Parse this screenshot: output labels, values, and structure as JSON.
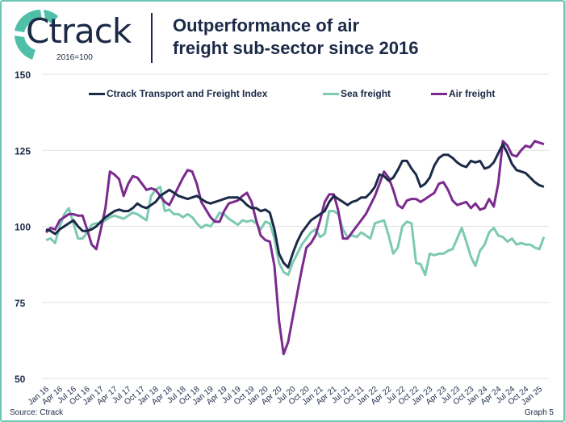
{
  "header": {
    "logo_text": "Ctrack",
    "base_note": "2016=100",
    "title_line1": "Outperformance of air",
    "title_line2": "freight sub-sector since 2016"
  },
  "footer": {
    "source": "Source: Ctrack",
    "graph_label": "Graph 5"
  },
  "colors": {
    "index": "#1b2a47",
    "sea": "#7cc9b4",
    "air": "#7b2a8e",
    "accent": "#4fbfa8"
  },
  "chart_data": {
    "type": "line",
    "title": "Outperformance of air freight sub-sector since 2016",
    "ylabel": "2016=100",
    "ylim": [
      50,
      150
    ],
    "yticks": [
      50,
      75,
      100,
      125,
      150
    ],
    "grid": true,
    "legend_position": "top",
    "x_start": "Jan 16",
    "x_frequency": "monthly",
    "xtick_labels": [
      "Jan 16",
      "Apr 16",
      "Jul 16",
      "Oct 16",
      "Jan 17",
      "Apr 17",
      "Jul 17",
      "Oct 17",
      "Jan 18",
      "Apr 18",
      "Jul 18",
      "Oct 18",
      "Jan 19",
      "Apr 19",
      "Jul 19",
      "Oct 19",
      "Jan 20",
      "Apr 20",
      "Jul 20",
      "Oct 20",
      "Jan 21",
      "Apr 21",
      "Jul 21",
      "Oct 21",
      "Jan 22",
      "Apr 22",
      "Jul 22",
      "Oct 22",
      "Jan 23",
      "Apr 23",
      "Jul 23",
      "Oct 23",
      "Jan 24",
      "Apr 24",
      "Jul 24",
      "Oct 24",
      "Jan 25"
    ],
    "series": [
      {
        "name": "Ctrack Transport and Freight Index",
        "key": "index",
        "values": [
          99,
          98.5,
          97.5,
          99,
          100,
          101,
          102,
          100,
          98.5,
          98.5,
          99,
          100,
          101.5,
          103,
          104,
          105,
          105.5,
          105,
          105,
          106,
          107.5,
          106.5,
          106,
          107,
          108,
          110,
          111,
          112,
          111,
          110,
          109.5,
          109,
          109.5,
          110,
          109,
          108,
          107.5,
          108,
          108.5,
          109,
          109.5,
          109.5,
          109.5,
          108.5,
          107,
          106,
          106,
          105,
          105.5,
          104.5,
          99,
          91,
          88,
          86.5,
          91,
          95,
          98,
          100,
          102,
          103,
          104,
          105,
          108,
          110,
          109,
          108,
          107,
          108,
          108.5,
          109.5,
          109.5,
          111,
          113,
          117,
          116.5,
          115,
          116,
          118.5,
          121.5,
          121.5,
          119,
          117,
          113,
          114,
          116,
          120,
          122.5,
          123.5,
          123.5,
          122.5,
          121,
          120,
          119.5,
          121.5,
          121,
          121.5,
          119,
          119.5,
          121,
          124,
          127,
          124,
          120.5,
          118.5,
          118,
          117.5,
          116,
          114.5,
          113.5,
          113
        ]
      },
      {
        "name": "Sea freight",
        "key": "sea",
        "values": [
          95.5,
          96,
          94.5,
          100,
          104,
          106,
          101,
          96,
          96,
          98,
          100.5,
          101,
          101,
          102,
          103,
          103.5,
          103,
          102.5,
          103.5,
          104.5,
          104,
          103,
          102,
          110,
          112,
          113,
          105,
          105.5,
          104,
          104,
          103,
          104,
          103,
          101,
          99.5,
          100.5,
          100,
          102,
          104.5,
          104,
          102.5,
          101.5,
          100.5,
          102,
          101.5,
          102,
          101,
          99,
          101.5,
          101,
          96,
          88,
          85,
          84,
          88,
          91,
          94,
          96,
          98,
          99,
          96.5,
          97.5,
          105,
          105,
          104,
          99,
          96.5,
          97,
          96.5,
          98,
          97,
          96,
          101,
          101.5,
          102,
          97,
          91,
          93,
          100,
          101.5,
          101,
          88,
          87.5,
          84,
          91,
          90.5,
          91,
          91,
          92,
          92.5,
          96,
          99.5,
          95,
          90,
          87,
          92,
          94,
          98,
          99.5,
          97,
          96.5,
          95,
          96,
          94,
          94.5,
          94,
          94,
          93,
          92.5,
          96.5
        ]
      },
      {
        "name": "Air freight",
        "key": "air",
        "values": [
          98,
          99.5,
          99,
          102,
          103,
          104,
          104,
          103.5,
          103.5,
          99,
          94,
          92.5,
          99,
          106,
          118,
          117,
          115.5,
          110,
          114,
          116.5,
          116,
          114,
          112,
          112.5,
          112,
          110,
          108,
          107,
          110,
          113,
          116,
          118.5,
          118,
          114,
          108,
          105.5,
          103,
          101.5,
          101.5,
          105,
          107.5,
          108,
          108.5,
          110,
          111,
          108,
          102,
          97,
          95.5,
          95,
          87,
          69,
          58,
          62,
          70,
          78,
          86,
          93,
          94.5,
          97,
          102,
          108,
          110.5,
          110.5,
          105,
          96,
          96,
          98,
          100,
          102,
          104,
          107,
          110,
          114,
          118,
          116,
          112,
          107,
          106,
          108.5,
          109,
          109,
          108,
          109,
          110,
          111,
          114,
          114.5,
          112,
          108.5,
          107,
          107.5,
          108,
          106,
          107.5,
          105.5,
          106,
          109,
          106.5,
          114,
          128,
          126.5,
          123.5,
          123,
          125,
          126.5,
          126,
          128,
          127.5,
          127
        ]
      }
    ]
  }
}
